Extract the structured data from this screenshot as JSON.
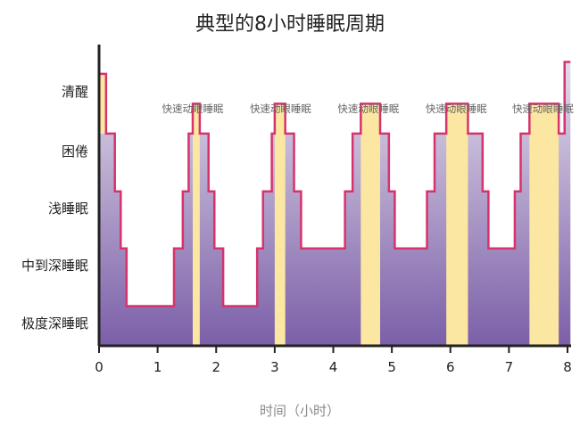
{
  "chart_data": {
    "type": "area",
    "title": "典型的8小时睡眠周期",
    "xlabel": "时间（小时）",
    "ylabel": "",
    "xlim": [
      0,
      8
    ],
    "x_ticks": [
      "0",
      "1",
      "2",
      "3",
      "4",
      "5",
      "6",
      "7",
      "8"
    ],
    "stage_labels": [
      "清醒",
      "困倦",
      "浅睡眠",
      "中到深睡眠",
      "极度深睡眠"
    ],
    "stage_scale_note": "stage index: 4=清醒, 3=困倦, 2=浅睡眠, 1=中到深睡眠, 0=极度深睡眠",
    "hypnogram": [
      {
        "x": 0.0,
        "y": 4.3
      },
      {
        "x": 0.12,
        "y": 4.3
      },
      {
        "x": 0.12,
        "y": 3.3
      },
      {
        "x": 0.27,
        "y": 3.3
      },
      {
        "x": 0.27,
        "y": 2.3
      },
      {
        "x": 0.37,
        "y": 2.3
      },
      {
        "x": 0.37,
        "y": 1.3
      },
      {
        "x": 0.47,
        "y": 1.3
      },
      {
        "x": 0.47,
        "y": 0.3
      },
      {
        "x": 1.28,
        "y": 0.3
      },
      {
        "x": 1.28,
        "y": 1.3
      },
      {
        "x": 1.43,
        "y": 1.3
      },
      {
        "x": 1.43,
        "y": 2.3
      },
      {
        "x": 1.53,
        "y": 2.3
      },
      {
        "x": 1.53,
        "y": 3.3
      },
      {
        "x": 1.6,
        "y": 3.3
      },
      {
        "x": 1.6,
        "y": 3.8
      },
      {
        "x": 1.72,
        "y": 3.8
      },
      {
        "x": 1.72,
        "y": 3.3
      },
      {
        "x": 1.87,
        "y": 3.3
      },
      {
        "x": 1.87,
        "y": 2.3
      },
      {
        "x": 1.97,
        "y": 2.3
      },
      {
        "x": 1.97,
        "y": 1.3
      },
      {
        "x": 2.12,
        "y": 1.3
      },
      {
        "x": 2.12,
        "y": 0.3
      },
      {
        "x": 2.7,
        "y": 0.3
      },
      {
        "x": 2.7,
        "y": 1.3
      },
      {
        "x": 2.8,
        "y": 1.3
      },
      {
        "x": 2.8,
        "y": 2.3
      },
      {
        "x": 2.95,
        "y": 2.3
      },
      {
        "x": 2.95,
        "y": 3.3
      },
      {
        "x": 3.0,
        "y": 3.3
      },
      {
        "x": 3.0,
        "y": 3.8
      },
      {
        "x": 3.18,
        "y": 3.8
      },
      {
        "x": 3.18,
        "y": 3.3
      },
      {
        "x": 3.33,
        "y": 3.3
      },
      {
        "x": 3.33,
        "y": 2.3
      },
      {
        "x": 3.45,
        "y": 2.3
      },
      {
        "x": 3.45,
        "y": 1.3
      },
      {
        "x": 4.2,
        "y": 1.3
      },
      {
        "x": 4.2,
        "y": 2.3
      },
      {
        "x": 4.33,
        "y": 2.3
      },
      {
        "x": 4.33,
        "y": 3.3
      },
      {
        "x": 4.47,
        "y": 3.3
      },
      {
        "x": 4.47,
        "y": 3.8
      },
      {
        "x": 4.8,
        "y": 3.8
      },
      {
        "x": 4.8,
        "y": 3.3
      },
      {
        "x": 4.95,
        "y": 3.3
      },
      {
        "x": 4.95,
        "y": 2.3
      },
      {
        "x": 5.05,
        "y": 2.3
      },
      {
        "x": 5.05,
        "y": 1.3
      },
      {
        "x": 5.6,
        "y": 1.3
      },
      {
        "x": 5.6,
        "y": 2.3
      },
      {
        "x": 5.73,
        "y": 2.3
      },
      {
        "x": 5.73,
        "y": 3.3
      },
      {
        "x": 5.93,
        "y": 3.3
      },
      {
        "x": 5.93,
        "y": 3.8
      },
      {
        "x": 6.3,
        "y": 3.8
      },
      {
        "x": 6.3,
        "y": 3.3
      },
      {
        "x": 6.55,
        "y": 3.3
      },
      {
        "x": 6.55,
        "y": 2.3
      },
      {
        "x": 6.65,
        "y": 2.3
      },
      {
        "x": 6.65,
        "y": 1.3
      },
      {
        "x": 7.1,
        "y": 1.3
      },
      {
        "x": 7.1,
        "y": 2.3
      },
      {
        "x": 7.2,
        "y": 2.3
      },
      {
        "x": 7.2,
        "y": 3.3
      },
      {
        "x": 7.35,
        "y": 3.3
      },
      {
        "x": 7.35,
        "y": 3.8
      },
      {
        "x": 7.85,
        "y": 3.8
      },
      {
        "x": 7.85,
        "y": 3.3
      },
      {
        "x": 7.95,
        "y": 3.3
      },
      {
        "x": 7.95,
        "y": 4.5
      },
      {
        "x": 8.05,
        "y": 4.5
      }
    ],
    "rem_periods": [
      {
        "label": "快速动眼睡眠",
        "start": 1.6,
        "end": 1.72
      },
      {
        "label": "快速动眼睡眠",
        "start": 3.0,
        "end": 3.18
      },
      {
        "label": "快速动眼睡眠",
        "start": 4.47,
        "end": 4.8
      },
      {
        "label": "快速动眼睡眠",
        "start": 5.93,
        "end": 6.3
      },
      {
        "label": "快速动眼睡眠",
        "start": 7.35,
        "end": 7.85
      }
    ],
    "awake_periods": [
      {
        "start": 0.0,
        "end": 0.12
      }
    ],
    "grid": false,
    "legend": "none"
  },
  "colors": {
    "line": "#d6336c",
    "rem_fill": "#fbe7a1",
    "area_top": "#e3dcea",
    "area_bottom": "#7b5fa8",
    "axis": "#222222"
  }
}
